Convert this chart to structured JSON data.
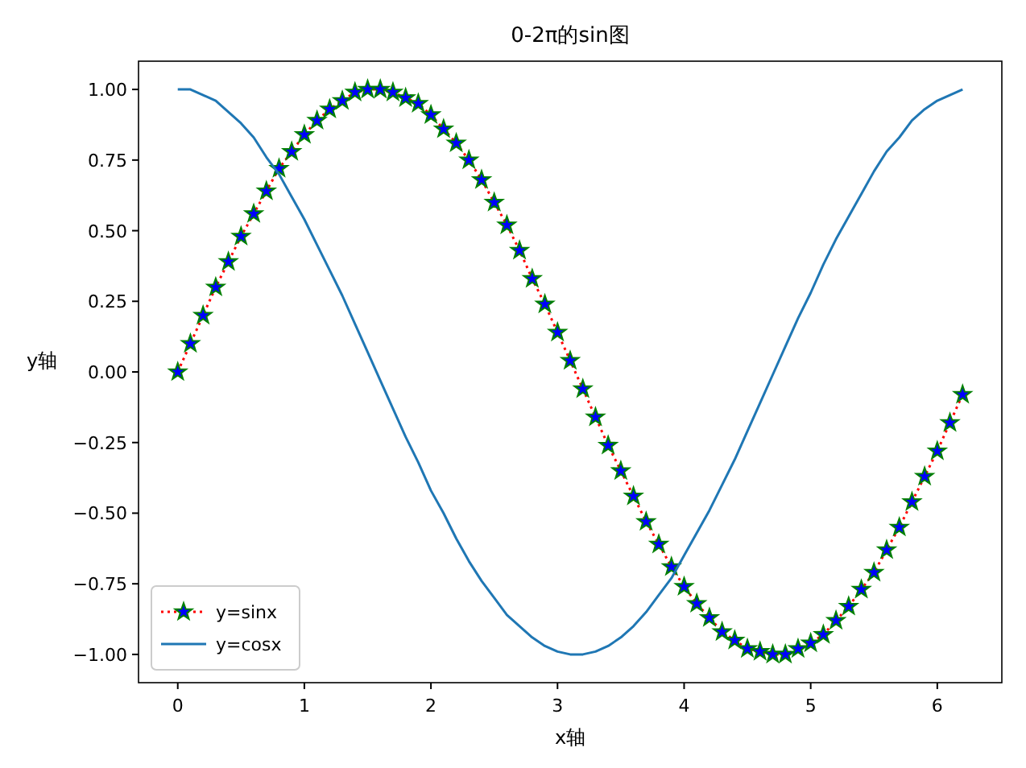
{
  "chart_data": {
    "type": "line",
    "title": "0-2π的sin图",
    "xlabel": "x轴",
    "ylabel": "y轴",
    "x": [
      0,
      0.1,
      0.2,
      0.3,
      0.4,
      0.5,
      0.6,
      0.7,
      0.8,
      0.9,
      1.0,
      1.1,
      1.2,
      1.3,
      1.4,
      1.5,
      1.6,
      1.7,
      1.8,
      1.9,
      2.0,
      2.1,
      2.2,
      2.3,
      2.4,
      2.5,
      2.6,
      2.7,
      2.8,
      2.9,
      3.0,
      3.1,
      3.2,
      3.3,
      3.4,
      3.5,
      3.6,
      3.7,
      3.8,
      3.9,
      4.0,
      4.1,
      4.2,
      4.3,
      4.4,
      4.5,
      4.6,
      4.7,
      4.8,
      4.9,
      5.0,
      5.1,
      5.2,
      5.3,
      5.4,
      5.5,
      5.6,
      5.7,
      5.8,
      5.9,
      6.0,
      6.1,
      6.2
    ],
    "series": [
      {
        "name": "y=sinx",
        "color": "#ff0000",
        "marker": "star",
        "line_style": "dotted",
        "values": [
          0.0,
          0.1,
          0.2,
          0.3,
          0.39,
          0.48,
          0.56,
          0.64,
          0.72,
          0.78,
          0.84,
          0.89,
          0.93,
          0.96,
          0.99,
          1.0,
          1.0,
          0.99,
          0.97,
          0.95,
          0.91,
          0.86,
          0.81,
          0.75,
          0.68,
          0.6,
          0.52,
          0.43,
          0.33,
          0.24,
          0.14,
          0.04,
          -0.06,
          -0.16,
          -0.26,
          -0.35,
          -0.44,
          -0.53,
          -0.61,
          -0.69,
          -0.76,
          -0.82,
          -0.87,
          -0.92,
          -0.95,
          -0.98,
          -0.99,
          -1.0,
          -1.0,
          -0.98,
          -0.96,
          -0.93,
          -0.88,
          -0.83,
          -0.77,
          -0.71,
          -0.63,
          -0.55,
          -0.46,
          -0.37,
          -0.28,
          -0.18,
          -0.08
        ]
      },
      {
        "name": "y=cosx",
        "color": "#1f77b4",
        "marker": "none",
        "line_style": "solid",
        "values": [
          1.0,
          1.0,
          0.98,
          0.96,
          0.92,
          0.88,
          0.83,
          0.76,
          0.7,
          0.62,
          0.54,
          0.45,
          0.36,
          0.27,
          0.17,
          0.07,
          -0.03,
          -0.13,
          -0.23,
          -0.32,
          -0.42,
          -0.5,
          -0.59,
          -0.67,
          -0.74,
          -0.8,
          -0.86,
          -0.9,
          -0.94,
          -0.97,
          -0.99,
          -1.0,
          -1.0,
          -0.99,
          -0.97,
          -0.94,
          -0.9,
          -0.85,
          -0.79,
          -0.73,
          -0.65,
          -0.57,
          -0.49,
          -0.4,
          -0.31,
          -0.21,
          -0.11,
          -0.01,
          0.09,
          0.19,
          0.28,
          0.38,
          0.47,
          0.55,
          0.63,
          0.71,
          0.78,
          0.83,
          0.89,
          0.93,
          0.96,
          0.98,
          1.0
        ]
      }
    ],
    "xlim": [
      -0.31,
      6.51
    ],
    "ylim": [
      -1.1,
      1.1
    ],
    "xticks": [
      0,
      1,
      2,
      3,
      4,
      5,
      6
    ],
    "yticks": [
      {
        "value": -1,
        "label": "−1.00"
      },
      {
        "value": -0.75,
        "label": "−0.75"
      },
      {
        "value": -0.5,
        "label": "−0.50"
      },
      {
        "value": -0.25,
        "label": "−0.25"
      },
      {
        "value": 0,
        "label": "0.00"
      },
      {
        "value": 0.25,
        "label": "0.25"
      },
      {
        "value": 0.5,
        "label": "0.50"
      },
      {
        "value": 0.75,
        "label": "0.75"
      },
      {
        "value": 1,
        "label": "1.00"
      }
    ],
    "legend": "bottom left",
    "grid": false
  }
}
